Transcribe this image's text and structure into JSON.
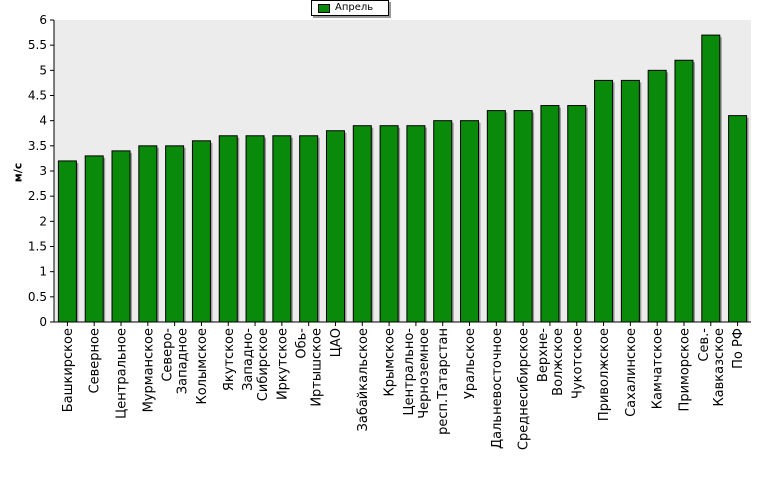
{
  "chart_data": {
    "type": "bar",
    "ylabel": "м/с",
    "ylim": [
      0,
      6
    ],
    "ytick_step": 0.5,
    "grid": false,
    "legend_position": "top-center",
    "colors": {
      "bar": "#0a8a0a",
      "plot_bg": "#ececec",
      "axis": "#000000"
    },
    "series": [
      {
        "name": "Апрель",
        "values": [
          3.2,
          3.3,
          3.4,
          3.5,
          3.5,
          3.6,
          3.7,
          3.7,
          3.7,
          3.7,
          3.8,
          3.9,
          3.9,
          3.9,
          4.0,
          4.0,
          4.2,
          4.2,
          4.3,
          4.3,
          4.8,
          4.8,
          5.0,
          5.2,
          5.7,
          4.1
        ]
      }
    ],
    "categories": [
      "Башкирское",
      "Северное",
      "Центральное",
      "Мурманское",
      "Северо-\nЗападное",
      "Колымское",
      "Якутское",
      "Западно-\nСибирское",
      "Иркутское",
      "Обь-\nИртышское",
      "ЦАО",
      "Забайкальское",
      "Крымское",
      "Центрально-\nЧерноземное",
      "респ.Татарстан",
      "Уральское",
      "Дальневосточное",
      "Среднесибирское",
      "Верхне-\nВолжское",
      "Чукотское",
      "Приволжское",
      "Сахалинское",
      "Камчатское",
      "Приморское",
      "Сев.-\nКавказское",
      "По РФ"
    ]
  }
}
